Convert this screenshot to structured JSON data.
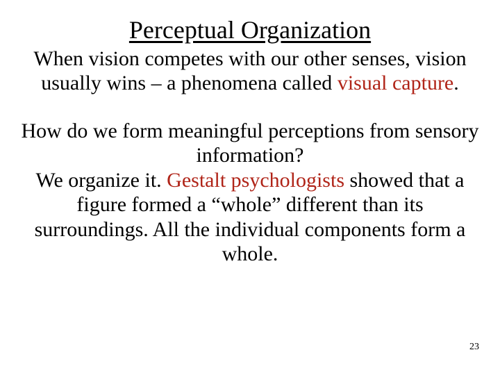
{
  "title": "Perceptual Organization",
  "para1": {
    "t1": "When vision competes with our other senses, vision usually wins – a phenomena called ",
    "hl": "visual capture",
    "t2": "."
  },
  "para2": {
    "t1": "How do we form meaningful perceptions from sensory information?",
    "t2": "We organize it. ",
    "hl": "Gestalt psychologists",
    "t3": " showed that a figure formed a “whole” different than its surroundings.  All the individual components form a whole."
  },
  "page_number": "23",
  "colors": {
    "text": "#000000",
    "highlight": "#b02418",
    "background": "#ffffff"
  },
  "typography": {
    "title_fontsize": 36,
    "body_fontsize": 30,
    "pagenum_fontsize": 14,
    "font_family": "Book Antiqua / Palatino serif"
  }
}
